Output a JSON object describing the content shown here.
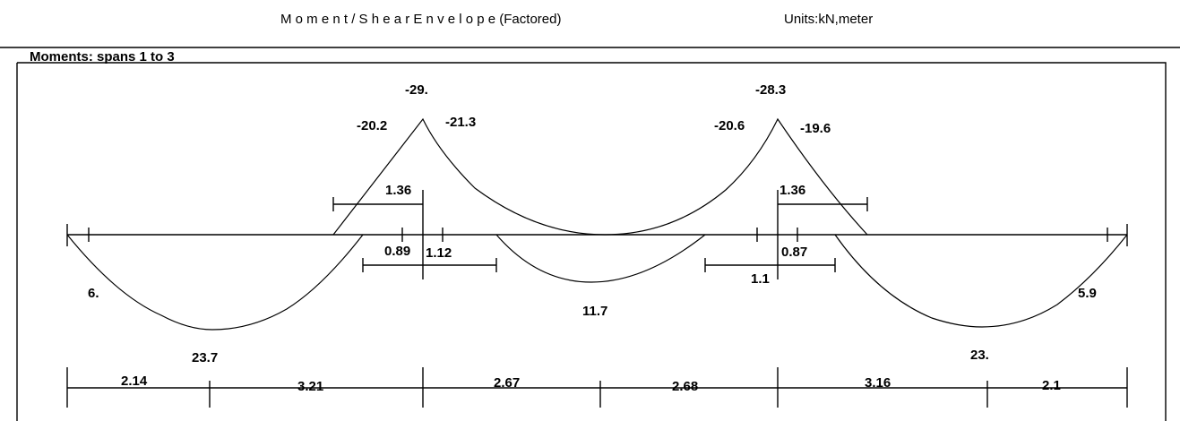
{
  "header": {
    "title": "M o m e n t / S h e a r     E n v e l o p e  (Factored)",
    "units": "Units:kN,meter"
  },
  "section": {
    "label": "Moments:    spans   1 to   3"
  },
  "moment_labels": {
    "support2_peak": "-29.",
    "support2_left": "-20.2",
    "support2_right": "-21.3",
    "support3_peak": "-28.3",
    "support3_left": "-20.6",
    "support3_right": "-19.6",
    "span1_end_left": "6.",
    "span3_end_right": "5.9",
    "span1_positive": "23.7",
    "span2_positive": "11.7",
    "span3_positive": "23."
  },
  "inflection_labels": {
    "s2_neg_left_ext": "1.36",
    "s2_pos_left": "0.89",
    "s2_pos_right": "1.12",
    "s3_neg_right_ext": "1.36",
    "s3_pos_left": "1.1",
    "s3_pos_right": "0.87"
  },
  "dimensions": [
    "2.14",
    "3.21",
    "2.67",
    "2.68",
    "3.16",
    "2.1"
  ]
}
